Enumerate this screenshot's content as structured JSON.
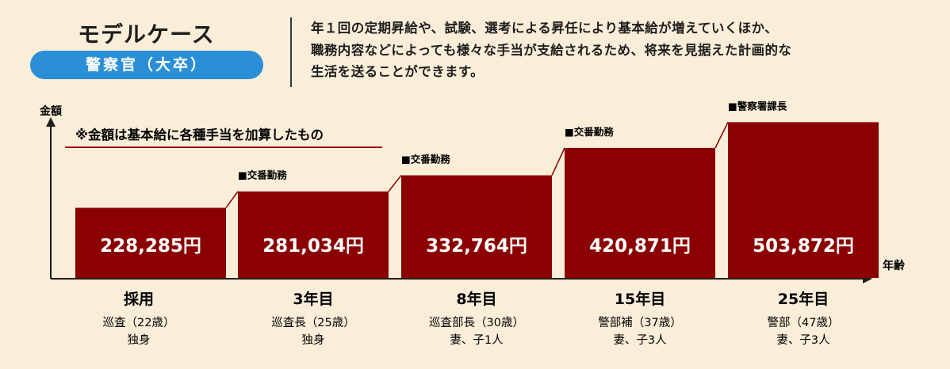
{
  "header": {
    "title": "モデルケース",
    "badge": "警察官（大卒）",
    "description": [
      "年１回の定期昇給や、試験、選考による昇任により基本給が増えていくほか、",
      "職務内容などによっても様々な手当が支給されるため、将来を見据えた計画的な",
      "生活を送ることができます。"
    ]
  },
  "chart_data": {
    "type": "bar",
    "ylabel": "金額",
    "xlabel": "年齢",
    "note": "※金額は基本給に各種手当を加算したもの",
    "unit": "円",
    "categories": [
      "採用",
      "3年目",
      "8年目",
      "15年目",
      "25年目"
    ],
    "values": [
      228285,
      281034,
      332764,
      420871,
      503872
    ],
    "value_labels": [
      "228,285円",
      "281,034円",
      "332,764円",
      "420,871円",
      "503,872円"
    ],
    "tags": [
      "",
      "■交番勤務",
      "■交番勤務",
      "■交番勤務",
      "■警察署課長"
    ],
    "details": [
      [
        "巡査（22歳）",
        "独身"
      ],
      [
        "巡査長（25歳）",
        "独身"
      ],
      [
        "巡査部長（30歳）",
        "妻、子1人"
      ],
      [
        "警部補（37歳）",
        "妻、子3人"
      ],
      [
        "警部（47歳）",
        "妻、子3人"
      ]
    ],
    "ylim": [
      0,
      520000
    ],
    "colors": {
      "bar": "#8b0000",
      "connector": "#8b0000",
      "axis": "#1e1e1e",
      "note_underline": "#9b1010",
      "value_text": "#ffffff"
    }
  }
}
